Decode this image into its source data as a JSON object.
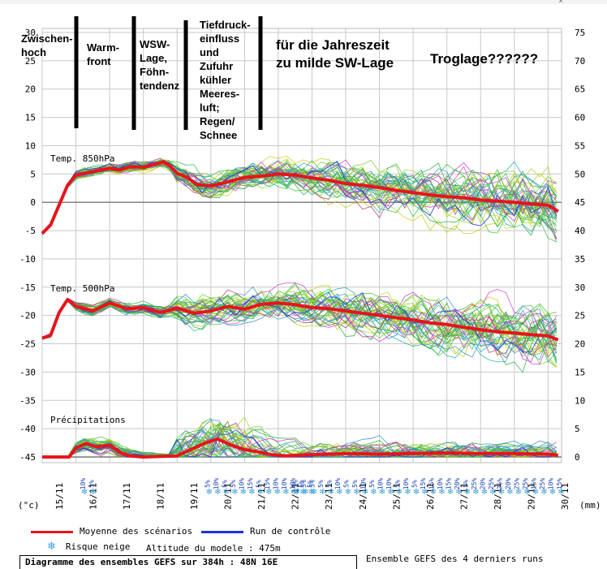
{
  "chart_data": {
    "type": "line",
    "title": "Diagramme des ensembles GEFS sur 384h : 48N 16E",
    "subtitle": "Ensemble GEFS des 4 derniers runs",
    "altitude": "Altitude du modele : 475m",
    "left_axis_unit": "(°c)",
    "right_axis_unit": "(mm)",
    "left_ticks": [
      30,
      25,
      20,
      15,
      10,
      5,
      0,
      -5,
      -10,
      -15,
      -20,
      -25,
      -30,
      -35,
      -40,
      -45
    ],
    "right_ticks": [
      75,
      70,
      65,
      60,
      55,
      50,
      45,
      40,
      35,
      30,
      25,
      20,
      15,
      10,
      5,
      0
    ],
    "x_ticks": [
      "15/11",
      "16/11",
      "17/11",
      "18/11",
      "19/11",
      "20/11",
      "21/11",
      "22/11",
      "23/11",
      "24/11",
      "25/11",
      "26/11",
      "27/11",
      "28/11",
      "29/11",
      "30/11"
    ],
    "section_labels": {
      "t850": "Temp. 850hPa",
      "t500": "Temp. 500hPa",
      "precip": "Précipitations"
    },
    "mean_t850": [
      [
        0,
        -5.5
      ],
      [
        0.25,
        -4
      ],
      [
        0.5,
        -0.5
      ],
      [
        0.75,
        3
      ],
      [
        1,
        4.8
      ],
      [
        1.5,
        5.4
      ],
      [
        2,
        6
      ],
      [
        2.3,
        5.7
      ],
      [
        2.6,
        6.3
      ],
      [
        3,
        6.2
      ],
      [
        3.3,
        6.6
      ],
      [
        3.6,
        7.2
      ],
      [
        3.8,
        6.4
      ],
      [
        4,
        5.1
      ],
      [
        4.3,
        4.4
      ],
      [
        4.6,
        3.1
      ],
      [
        5,
        2.9
      ],
      [
        5.5,
        3.6
      ],
      [
        6,
        4.4
      ],
      [
        6.5,
        4.6
      ],
      [
        7,
        5
      ],
      [
        7.5,
        4.8
      ],
      [
        8,
        4.3
      ],
      [
        8.5,
        3.9
      ],
      [
        9,
        3.3
      ],
      [
        9.5,
        3
      ],
      [
        10,
        2.6
      ],
      [
        10.5,
        2.1
      ],
      [
        11,
        1.7
      ],
      [
        11.5,
        1.3
      ],
      [
        12,
        1
      ],
      [
        12.5,
        0.8
      ],
      [
        13,
        0.4
      ],
      [
        13.5,
        0.2
      ],
      [
        14,
        0
      ],
      [
        14.5,
        -0.3
      ],
      [
        15,
        -0.5
      ],
      [
        15.3,
        -1.6
      ]
    ],
    "mean_t500": [
      [
        0,
        -24
      ],
      [
        0.25,
        -23.5
      ],
      [
        0.5,
        -19.5
      ],
      [
        0.75,
        -17.2
      ],
      [
        1,
        -18.4
      ],
      [
        1.5,
        -19.2
      ],
      [
        2,
        -17.8
      ],
      [
        2.5,
        -18.8
      ],
      [
        3,
        -18.6
      ],
      [
        3.5,
        -19.5
      ],
      [
        4,
        -18.7
      ],
      [
        4.5,
        -19.6
      ],
      [
        5,
        -19.2
      ],
      [
        5.5,
        -18.4
      ],
      [
        6,
        -18.9
      ],
      [
        6.5,
        -18
      ],
      [
        7,
        -17.8
      ],
      [
        7.5,
        -18.1
      ],
      [
        8,
        -18.6
      ],
      [
        8.5,
        -18.8
      ],
      [
        9,
        -19.2
      ],
      [
        9.5,
        -19.6
      ],
      [
        10,
        -20
      ],
      [
        10.5,
        -20.4
      ],
      [
        11,
        -20.8
      ],
      [
        11.5,
        -21.3
      ],
      [
        12,
        -21.6
      ],
      [
        12.5,
        -22.1
      ],
      [
        13,
        -22.5
      ],
      [
        13.5,
        -22.9
      ],
      [
        14,
        -23.1
      ],
      [
        14.5,
        -23.4
      ],
      [
        15,
        -23.6
      ],
      [
        15.3,
        -24.3
      ]
    ],
    "mean_precip_mm": [
      [
        0,
        0
      ],
      [
        0.8,
        0
      ],
      [
        1,
        1.6
      ],
      [
        1.3,
        2.4
      ],
      [
        1.6,
        1.8
      ],
      [
        2,
        2.1
      ],
      [
        2.3,
        0.8
      ],
      [
        2.6,
        0.2
      ],
      [
        3,
        0
      ],
      [
        3.5,
        0.1
      ],
      [
        4,
        0.2
      ],
      [
        4.4,
        1.3
      ],
      [
        4.8,
        2.4
      ],
      [
        5.2,
        3.2
      ],
      [
        5.6,
        2.1
      ],
      [
        6,
        1.3
      ],
      [
        6.4,
        0.9
      ],
      [
        6.8,
        0.4
      ],
      [
        7.2,
        0.2
      ],
      [
        8,
        0.4
      ],
      [
        9,
        0.6
      ],
      [
        10,
        0.5
      ],
      [
        11,
        0.6
      ],
      [
        12,
        0.7
      ],
      [
        13,
        0.6
      ],
      [
        14,
        0.6
      ],
      [
        15,
        0.5
      ],
      [
        15.3,
        0.3
      ]
    ],
    "legend": {
      "mean": "Moyenne des scénarios",
      "control": "Run de contrôle",
      "snow": "Risque neige"
    },
    "snow_risk": [
      {
        "pos": 1.2,
        "values": [
          "10%",
          "5%"
        ]
      },
      {
        "pos": 4.9,
        "values": [
          "5%",
          "10%",
          "5%",
          "5%",
          "10%",
          "15%",
          "5%",
          "15%",
          "10%",
          "10%",
          "10%",
          "5%",
          "5%"
        ]
      },
      {
        "pos": 7.5,
        "values": [
          "5%",
          "5%",
          "5%",
          "5%",
          "5%",
          "10%",
          "5%",
          "5%",
          "10%",
          "5%",
          "10%",
          "10%",
          "5%",
          "10%",
          "5%",
          "15%",
          "15%",
          "10%",
          "15%",
          "20%",
          "5%",
          "25%",
          "20%",
          "25%",
          "25%",
          "20%",
          "25%",
          "25%",
          "15%",
          "25%",
          "10%",
          "15%",
          "15%"
        ]
      }
    ],
    "annotations": [
      {
        "id": "zwischenhoch",
        "lines": [
          "Zwischen-",
          "hoch"
        ]
      },
      {
        "id": "warmfront",
        "lines": [
          "Warm-",
          "front"
        ]
      },
      {
        "id": "wsw",
        "lines": [
          "WSW-",
          "Lage,",
          "Föhn-",
          "tendenz"
        ]
      },
      {
        "id": "tief",
        "lines": [
          "Tiefdruck-",
          "einfluss",
          "und",
          "Zufuhr",
          "kühler",
          "Meeres-",
          "luft;",
          "Regen/",
          "Schnee"
        ]
      },
      {
        "id": "sw",
        "lines": [
          "für die Jahreszeit",
          "zu milde SW-Lage"
        ]
      },
      {
        "id": "trog",
        "lines": [
          "Troglage??????"
        ]
      }
    ],
    "colors": {
      "mean": "#e8141b",
      "control": "#1c31e0",
      "ensemble": [
        "#2cc12c",
        "#1fa63a",
        "#9ed31c",
        "#c8c800",
        "#d22fc8",
        "#a0347e",
        "#15a8a8",
        "#2a8ad8",
        "#6ecb2a",
        "#48b848"
      ],
      "grid": "#c8c8c8",
      "zero": "#808080"
    },
    "ylim": [
      -45,
      30
    ],
    "xlim": [
      0,
      15.4
    ],
    "grid": true
  }
}
